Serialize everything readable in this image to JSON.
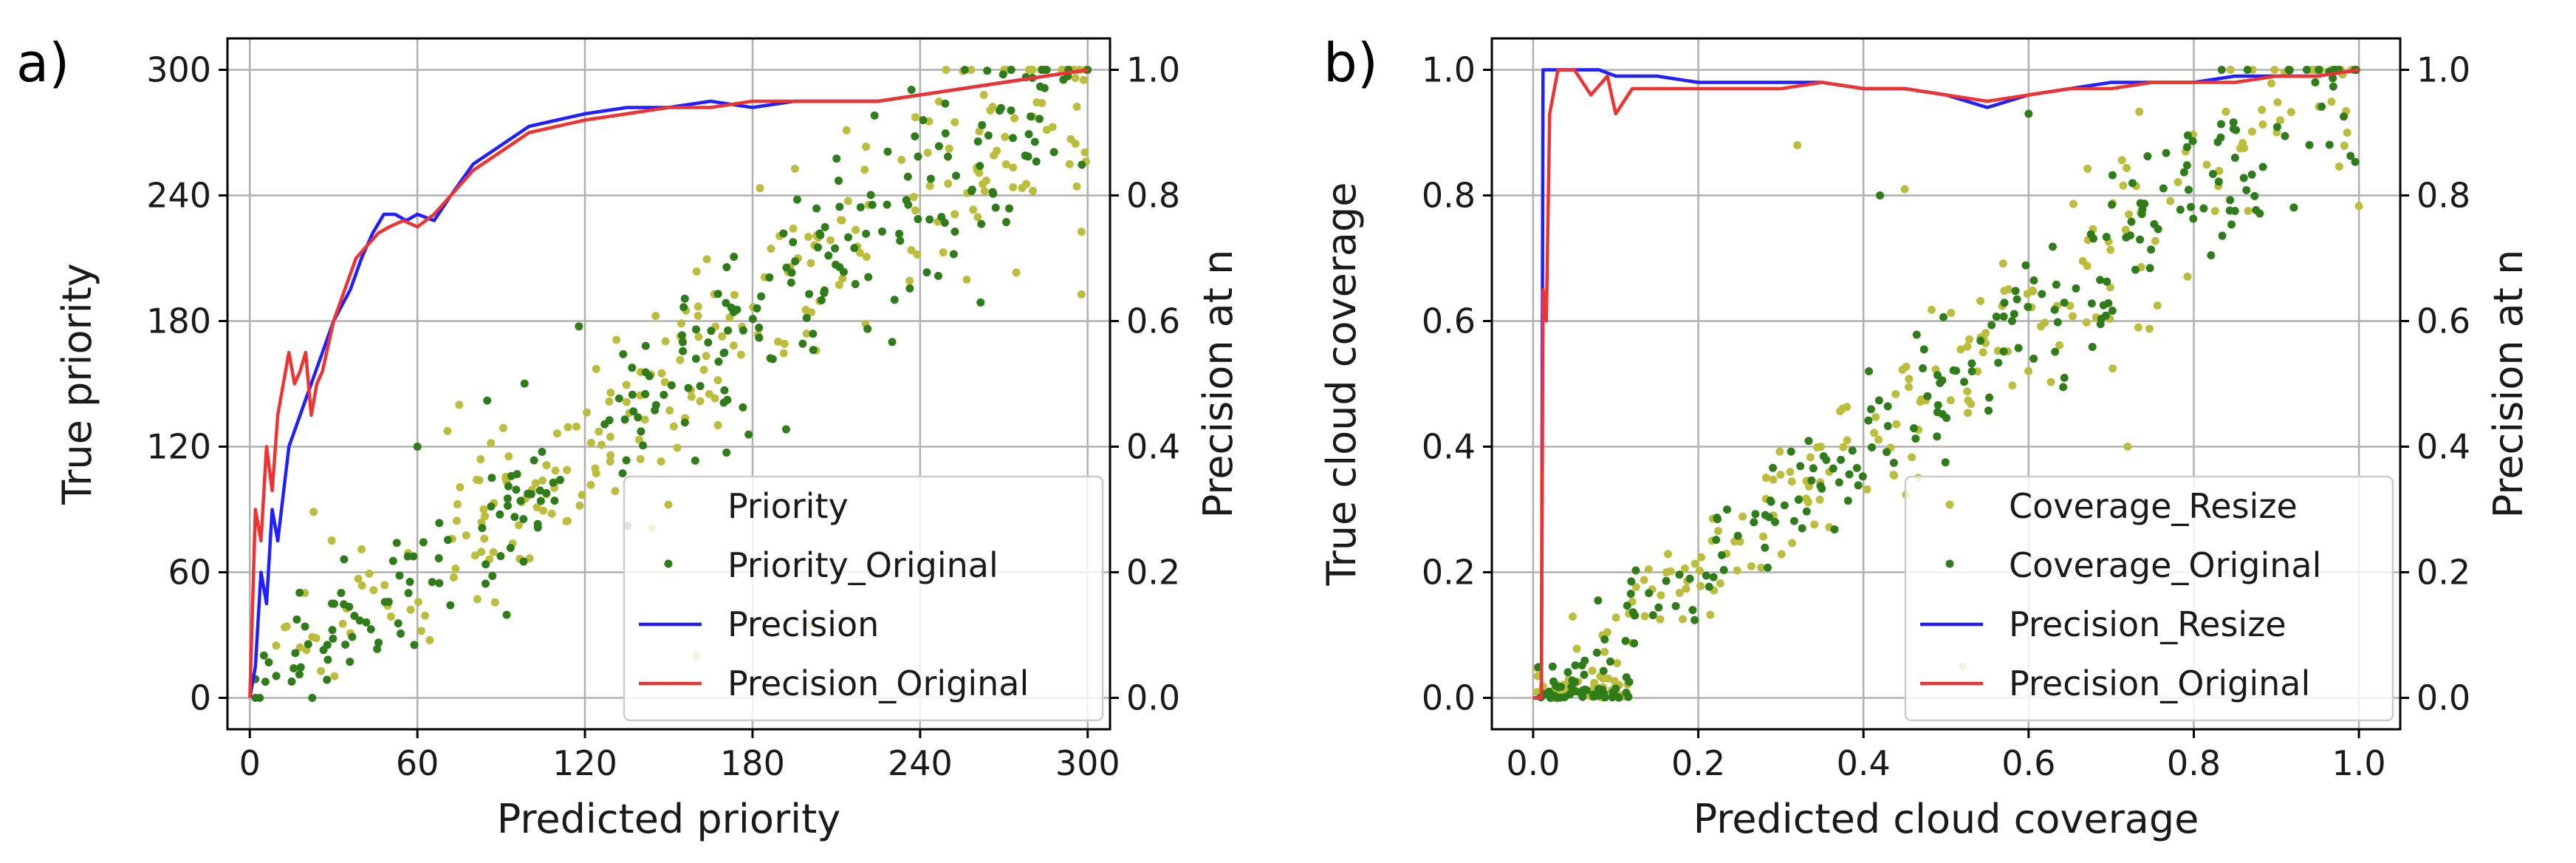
{
  "chart_data": [
    {
      "type": "scatter",
      "panel_label": "a)",
      "xlabel": "Predicted priority",
      "ylabel": "True priority",
      "ylabel_right": "Precision at n",
      "xlim": [
        -8,
        308
      ],
      "ylim": [
        -15,
        315
      ],
      "ylim_right": [
        -0.05,
        1.05
      ],
      "xticks": [
        "0",
        "60",
        "120",
        "180",
        "240",
        "300"
      ],
      "yticks": [
        "0",
        "60",
        "120",
        "180",
        "240",
        "300"
      ],
      "yticks_right": [
        "0.0",
        "0.2",
        "0.4",
        "0.6",
        "0.8",
        "1.0"
      ],
      "grid": true,
      "legend_position": "lower-right",
      "series": [
        {
          "name": "Priority",
          "kind": "scatter",
          "color": "#bcbd3c",
          "seed": 11,
          "n": 260,
          "noise": 28,
          "y_max": 300,
          "x_max": 300,
          "outliers": [
            [
              160,
              20
            ],
            [
              75,
              140
            ],
            [
              200,
              35
            ]
          ]
        },
        {
          "name": "Priority_Original",
          "kind": "scatter",
          "color": "#2f7d1a",
          "seed": 23,
          "n": 260,
          "noise": 24,
          "y_max": 300,
          "x_max": 300,
          "outliers": [
            [
              85,
              142
            ],
            [
              60,
              120
            ],
            [
              230,
              170
            ]
          ]
        },
        {
          "name": "Precision",
          "kind": "line",
          "color": "#1f1fff",
          "axis": "right",
          "x": [
            0,
            2,
            4,
            6,
            8,
            10,
            14,
            18,
            22,
            26,
            30,
            36,
            40,
            44,
            48,
            52,
            56,
            60,
            66,
            72,
            80,
            90,
            100,
            110,
            120,
            135,
            150,
            165,
            180,
            195,
            210,
            225,
            240,
            255,
            270,
            285,
            300
          ],
          "y": [
            0.0,
            0.05,
            0.2,
            0.15,
            0.3,
            0.25,
            0.4,
            0.45,
            0.5,
            0.55,
            0.6,
            0.65,
            0.7,
            0.74,
            0.77,
            0.77,
            0.76,
            0.77,
            0.76,
            0.8,
            0.85,
            0.88,
            0.91,
            0.92,
            0.93,
            0.94,
            0.94,
            0.95,
            0.94,
            0.95,
            0.95,
            0.95,
            0.96,
            0.97,
            0.98,
            0.99,
            1.0
          ]
        },
        {
          "name": "Precision_Original",
          "kind": "line",
          "color": "#ee3333",
          "axis": "right",
          "x": [
            0,
            2,
            4,
            6,
            8,
            10,
            12,
            14,
            16,
            18,
            20,
            22,
            24,
            26,
            30,
            34,
            38,
            42,
            46,
            50,
            55,
            60,
            66,
            72,
            80,
            90,
            100,
            110,
            120,
            135,
            150,
            165,
            180,
            195,
            210,
            225,
            240,
            255,
            270,
            285,
            300
          ],
          "y": [
            0.0,
            0.3,
            0.25,
            0.4,
            0.33,
            0.45,
            0.5,
            0.55,
            0.5,
            0.52,
            0.55,
            0.45,
            0.5,
            0.52,
            0.6,
            0.65,
            0.7,
            0.72,
            0.74,
            0.75,
            0.76,
            0.75,
            0.77,
            0.8,
            0.84,
            0.87,
            0.9,
            0.91,
            0.92,
            0.93,
            0.94,
            0.94,
            0.95,
            0.95,
            0.95,
            0.95,
            0.96,
            0.97,
            0.98,
            0.99,
            1.0
          ]
        }
      ]
    },
    {
      "type": "scatter",
      "panel_label": "b)",
      "xlabel": "Predicted cloud coverage",
      "ylabel": "True cloud coverage",
      "ylabel_right": "Precision at n",
      "xlim": [
        -0.05,
        1.05
      ],
      "ylim": [
        -0.05,
        1.05
      ],
      "ylim_right": [
        -0.05,
        1.05
      ],
      "xticks": [
        "0.0",
        "0.2",
        "0.4",
        "0.6",
        "0.8",
        "1.0"
      ],
      "yticks": [
        "0.0",
        "0.2",
        "0.4",
        "0.6",
        "0.8",
        "1.0"
      ],
      "yticks_right": [
        "0.0",
        "0.2",
        "0.4",
        "0.6",
        "0.8",
        "1.0"
      ],
      "grid": true,
      "legend_position": "lower-right",
      "series": [
        {
          "name": "Coverage_Resize",
          "kind": "scatter",
          "color": "#bcbd3c",
          "seed": 37,
          "n": 260,
          "noise": 0.07,
          "y_max": 1.0,
          "x_max": 1.0,
          "outliers": [
            [
              0.32,
              0.88
            ],
            [
              0.45,
              0.81
            ],
            [
              0.72,
              0.4
            ],
            [
              0.52,
              0.05
            ]
          ]
        },
        {
          "name": "Coverage_Original",
          "kind": "scatter",
          "color": "#2f7d1a",
          "seed": 53,
          "n": 260,
          "noise": 0.06,
          "y_max": 1.0,
          "x_max": 1.0,
          "outliers": [
            [
              0.42,
              0.8
            ],
            [
              0.58,
              0.6
            ],
            [
              0.6,
              0.93
            ],
            [
              0.85,
              0.86
            ]
          ]
        },
        {
          "name": "Precision_Resize",
          "kind": "line",
          "color": "#1f1fff",
          "axis": "right",
          "x": [
            0.0,
            0.01,
            0.012,
            0.02,
            0.05,
            0.08,
            0.1,
            0.15,
            0.2,
            0.25,
            0.3,
            0.35,
            0.4,
            0.45,
            0.5,
            0.55,
            0.6,
            0.65,
            0.7,
            0.75,
            0.8,
            0.85,
            0.9,
            0.95,
            1.0
          ],
          "y": [
            0.0,
            0.0,
            1.0,
            1.0,
            1.0,
            1.0,
            0.99,
            0.99,
            0.98,
            0.98,
            0.98,
            0.98,
            0.97,
            0.97,
            0.96,
            0.94,
            0.96,
            0.97,
            0.98,
            0.98,
            0.98,
            0.99,
            0.99,
            0.99,
            1.0
          ]
        },
        {
          "name": "Precision_Original",
          "kind": "line",
          "color": "#ee3333",
          "axis": "right",
          "x": [
            0.0,
            0.01,
            0.012,
            0.016,
            0.02,
            0.03,
            0.05,
            0.07,
            0.09,
            0.1,
            0.12,
            0.15,
            0.2,
            0.25,
            0.3,
            0.35,
            0.4,
            0.45,
            0.5,
            0.55,
            0.6,
            0.65,
            0.7,
            0.75,
            0.8,
            0.85,
            0.9,
            0.95,
            1.0
          ],
          "y": [
            0.0,
            0.0,
            0.65,
            0.6,
            0.93,
            1.0,
            1.0,
            0.96,
            0.99,
            0.93,
            0.97,
            0.97,
            0.97,
            0.97,
            0.97,
            0.98,
            0.97,
            0.97,
            0.96,
            0.95,
            0.96,
            0.97,
            0.97,
            0.98,
            0.98,
            0.98,
            0.99,
            0.99,
            1.0
          ]
        }
      ]
    }
  ]
}
